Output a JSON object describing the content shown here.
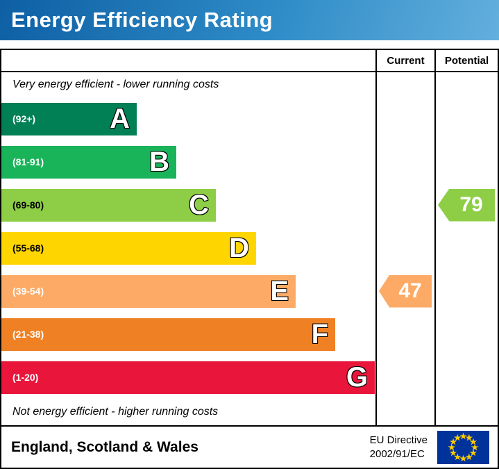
{
  "header": {
    "title": "Energy Efficiency Rating"
  },
  "columns": {
    "current": "Current",
    "potential": "Potential"
  },
  "captions": {
    "top": "Very energy efficient - lower running costs",
    "bottom": "Not energy efficient - higher running costs"
  },
  "bands": [
    {
      "letter": "A",
      "range": "(92+)",
      "color": "#008054",
      "range_color": "#ffffff"
    },
    {
      "letter": "B",
      "range": "(81-91)",
      "color": "#19b459",
      "range_color": "#ffffff"
    },
    {
      "letter": "C",
      "range": "(69-80)",
      "color": "#8dce46",
      "range_color": "#000000"
    },
    {
      "letter": "D",
      "range": "(55-68)",
      "color": "#ffd500",
      "range_color": "#000000"
    },
    {
      "letter": "E",
      "range": "(39-54)",
      "color": "#fcaa65",
      "range_color": "#ffffff"
    },
    {
      "letter": "F",
      "range": "(21-38)",
      "color": "#ef8023",
      "range_color": "#ffffff"
    },
    {
      "letter": "G",
      "range": "(1-20)",
      "color": "#e9153b",
      "range_color": "#ffffff"
    }
  ],
  "current": {
    "value": "47",
    "band_index": 4,
    "color": "#fcaa65"
  },
  "potential": {
    "value": "79",
    "band_index": 2,
    "color": "#8dce46"
  },
  "footer": {
    "region": "England, Scotland & Wales",
    "directive_line1": "EU Directive",
    "directive_line2": "2002/91/EC",
    "flag_icon": "eu-flag"
  },
  "chart_data": {
    "type": "bar",
    "title": "Energy Efficiency Rating",
    "categories": [
      "A (92+)",
      "B (81-91)",
      "C (69-80)",
      "D (55-68)",
      "E (39-54)",
      "F (21-38)",
      "G (1-20)"
    ],
    "band_colors": [
      "#008054",
      "#19b459",
      "#8dce46",
      "#ffd500",
      "#fcaa65",
      "#ef8023",
      "#e9153b"
    ],
    "scale_min": 1,
    "scale_max": 100,
    "series": [
      {
        "name": "Current",
        "value": 47,
        "band": "E"
      },
      {
        "name": "Potential",
        "value": 79,
        "band": "C"
      }
    ],
    "annotations": [
      "Very energy efficient - lower running costs",
      "Not energy efficient - higher running costs"
    ],
    "footer_text": "England, Scotland & Wales | EU Directive 2002/91/EC"
  }
}
